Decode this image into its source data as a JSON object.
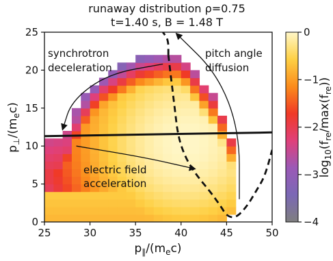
{
  "chart_data": {
    "type": "heatmap",
    "title_line1": "runaway distribution ρ=0.75",
    "title_line2": "t=1.40 s, B = 1.48 T",
    "xlabel": "p∥/(mec)",
    "ylabel": "p⊥/(mec)",
    "colorbar_label": "log10(fre/max(fre))",
    "xlim": [
      25,
      50
    ],
    "ylim": [
      0,
      25
    ],
    "x_ticks": [
      "25",
      "30",
      "35",
      "40",
      "45",
      "50"
    ],
    "y_ticks": [
      "0",
      "5",
      "10",
      "15",
      "20",
      "25"
    ],
    "colorbar_range": [
      -4,
      0
    ],
    "colorbar_ticks": [
      "0",
      "−1",
      "−2",
      "−3",
      "−4"
    ],
    "colormap_stops": [
      "#7f7f7f",
      "#7b68b5",
      "#9b59b6",
      "#e0407a",
      "#f03a26",
      "#fb8c1c",
      "#fed044",
      "#fff7c8"
    ],
    "grid": false,
    "cell_size": 1,
    "distribution_peak": {
      "p_par": 40.5,
      "p_perp": 10.5
    },
    "annotations": [
      "synchrotron deceleration",
      "pitch angle diffusion",
      "electric field acceleration"
    ],
    "dashed_curve": [
      [
        38.6,
        22.0
      ],
      [
        38.8,
        20.0
      ],
      [
        39.0,
        18.0
      ],
      [
        39.2,
        16.0
      ],
      [
        39.4,
        14.0
      ],
      [
        39.6,
        12.0
      ],
      [
        40.0,
        10.0
      ],
      [
        40.7,
        8.0
      ],
      [
        41.8,
        6.0
      ],
      [
        43.2,
        4.0
      ],
      [
        44.4,
        2.0
      ],
      [
        45.0,
        0.8
      ],
      [
        46.0,
        0.5
      ],
      [
        47.2,
        2.0
      ],
      [
        48.2,
        4.0
      ],
      [
        49.2,
        6.0
      ],
      [
        50.0,
        9.5
      ]
    ],
    "dashed_curve_top": [
      [
        38.6,
        22.0
      ],
      [
        38.6,
        24.0
      ],
      [
        38.0,
        25.0
      ]
    ],
    "solid_line": [
      [
        25,
        11.3
      ],
      [
        50,
        11.8
      ]
    ],
    "arrows": [
      {
        "name": "synchrotron",
        "path": [
          [
            38.0,
            20.8
          ],
          [
            32.0,
            19.5
          ],
          [
            28.0,
            16.0
          ],
          [
            27.0,
            12.2
          ]
        ]
      },
      {
        "name": "pitch-angle",
        "path": [
          [
            46.4,
            3.0
          ],
          [
            46.4,
            12.0
          ],
          [
            44.0,
            19.5
          ],
          [
            39.5,
            24.8
          ]
        ]
      },
      {
        "name": "efield",
        "path": [
          [
            28.5,
            10.0
          ],
          [
            36.0,
            8.5
          ],
          [
            41.5,
            7.0
          ]
        ]
      }
    ]
  }
}
